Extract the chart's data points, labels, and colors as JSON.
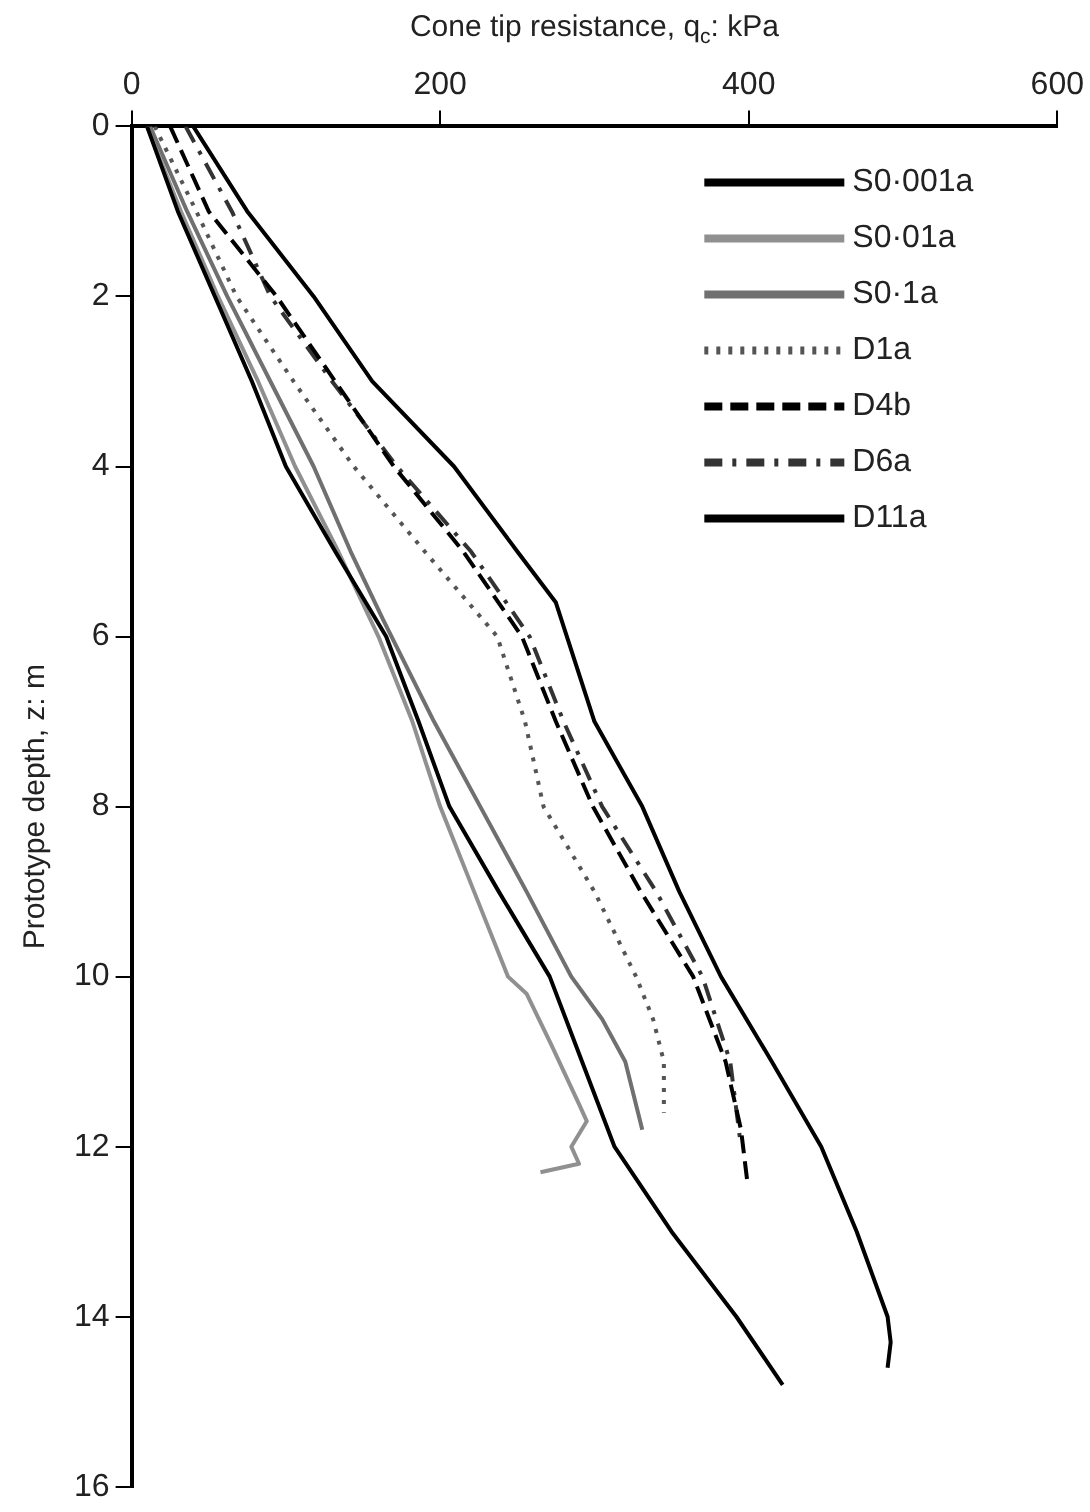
{
  "chart_data": {
    "type": "line",
    "xlabel": "Cone tip resistance, q$_{c}$: kPa",
    "ylabel": "Prototype depth, z: m",
    "xlim": [
      0,
      600
    ],
    "xticks": [
      0,
      200,
      400,
      600
    ],
    "ylim": [
      16,
      0
    ],
    "yticks": [
      0,
      2,
      4,
      6,
      8,
      10,
      12,
      14,
      16
    ],
    "grid": false,
    "legend": "top right",
    "marker": "none",
    "series": [
      {
        "name": "S0·001a",
        "color": "#000000",
        "line_style": "solid",
        "x": [
          10,
          30,
          54,
          78,
          100,
          132,
          165,
          186,
          206,
          238,
          271,
          292,
          313,
          350,
          392,
          422
        ],
        "values": [
          0,
          1,
          2,
          3,
          4,
          5,
          6,
          7,
          8,
          9,
          10,
          11,
          12,
          13,
          14,
          14.8
        ]
      },
      {
        "name": "S0·01a",
        "color": "#909090",
        "line_style": "solid",
        "x": [
          10,
          32,
          56,
          82,
          106,
          134,
          160,
          182,
          200,
          222,
          244,
          256,
          272,
          290,
          295,
          285,
          290,
          265
        ],
        "values": [
          0,
          1,
          2,
          3,
          4,
          5,
          6,
          7,
          8,
          9,
          10,
          10.2,
          10.8,
          11.5,
          11.7,
          12,
          12.2,
          12.3
        ]
      },
      {
        "name": "S0·1a",
        "color": "#707070",
        "line_style": "solid",
        "x": [
          12,
          36,
          62,
          90,
          118,
          142,
          163,
          196,
          226,
          256,
          285,
          305,
          320,
          331
        ],
        "values": [
          0,
          1,
          2,
          3,
          4,
          5,
          5.8,
          7,
          8,
          9,
          10,
          10.5,
          11,
          11.8
        ]
      },
      {
        "name": "D1a",
        "color": "#555555",
        "line_style": "dotted",
        "x": [
          15,
          42,
          68,
          105,
          144,
          190,
          237,
          255,
          267,
          300,
          327,
          338,
          345,
          345
        ],
        "values": [
          0,
          1,
          2,
          3,
          4,
          5,
          6,
          7,
          8,
          9,
          10,
          10.5,
          11,
          11.6
        ]
      },
      {
        "name": "D4b",
        "color": "#000000",
        "line_style": "dashed",
        "x": [
          25,
          50,
          94,
          132,
          170,
          215,
          253,
          275,
          299,
          330,
          364,
          385,
          395,
          399
        ],
        "values": [
          0,
          1,
          2,
          3,
          4,
          5,
          6,
          7,
          8,
          9,
          10,
          11,
          11.8,
          12.4
        ]
      },
      {
        "name": "D6a",
        "color": "#333333",
        "line_style": "dashdot",
        "x": [
          35,
          65,
          90,
          130,
          172,
          220,
          258,
          280,
          305,
          340,
          370,
          388,
          395
        ],
        "values": [
          0,
          1,
          2,
          3,
          4,
          5,
          6,
          7,
          8,
          9,
          10,
          11,
          12
        ]
      },
      {
        "name": "D11a",
        "color": "#000000",
        "line_style": "solid",
        "x": [
          40,
          75,
          118,
          156,
          209,
          250,
          275,
          300,
          331,
          355,
          382,
          415,
          447,
          470,
          490,
          492,
          490
        ],
        "values": [
          0,
          1,
          2,
          3,
          4,
          5,
          5.6,
          7,
          8,
          9,
          10,
          11,
          12,
          13,
          14,
          14.3,
          14.6
        ]
      }
    ]
  }
}
